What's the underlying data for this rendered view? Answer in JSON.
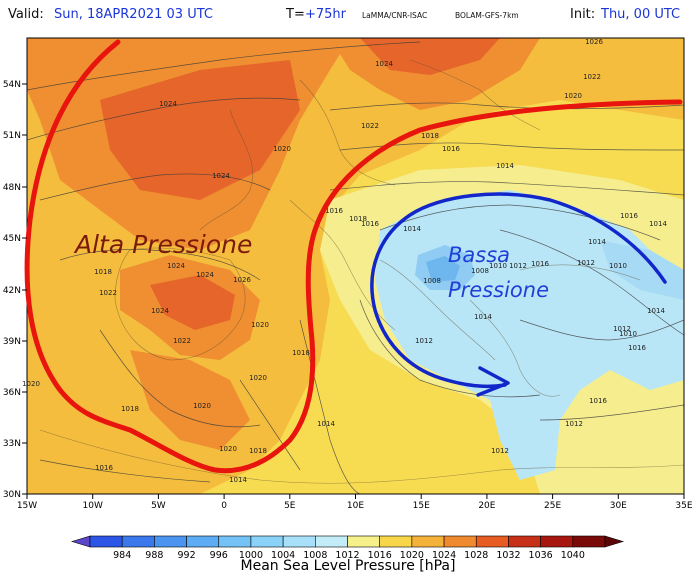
{
  "header": {
    "valid_label": "Valid:",
    "valid_value": "Sun, 18APR2021  03 UTC",
    "t_label": "T=",
    "t_value": "+75hr",
    "model_org": "LaMMA/CNR-ISAC",
    "model_name": "BOLAM-GFS-7km",
    "init_label": "Init:",
    "init_value": "Thu, 00 UTC"
  },
  "axes": {
    "lon_ticks": [
      "15W",
      "10W",
      "5W",
      "0",
      "5E",
      "10E",
      "15E",
      "20E",
      "25E",
      "30E",
      "35E"
    ],
    "lat_ticks": [
      "54N",
      "51N",
      "48N",
      "45N",
      "42N",
      "39N",
      "36N",
      "33N",
      "30N"
    ]
  },
  "isobar_labels": [
    "1024",
    "1026",
    "1022",
    "1020",
    "1024",
    "1022",
    "1020",
    "1018",
    "1016",
    "1014",
    "1024",
    "1024",
    "1024",
    "1026",
    "1024",
    "1022",
    "1020",
    "1018",
    "1016",
    "1018",
    "1016",
    "1014",
    "1010",
    "1008",
    "1008",
    "1012",
    "1016",
    "1014",
    "1010",
    "1012",
    "1012",
    "1010",
    "1014",
    "1012",
    "1014",
    "1012",
    "1012",
    "1016",
    "1014",
    "1016",
    "1016",
    "1014",
    "1018",
    "1020",
    "1020",
    "1020",
    "1020",
    "1018",
    "1016",
    "1014",
    "1022",
    "1018"
  ],
  "annotations": {
    "high": "Alta Pressione",
    "low_line1": "Bassa",
    "low_line2": "Pressione"
  },
  "legend": {
    "title": "Mean Sea Level Pressure [hPa]",
    "ticks": [
      "984",
      "988",
      "992",
      "996",
      "1000",
      "1004",
      "1008",
      "1012",
      "1016",
      "1020",
      "1024",
      "1028",
      "1032",
      "1036",
      "1040"
    ],
    "colors": [
      "#2e56e6",
      "#3b78ec",
      "#4b95f1",
      "#5eadf4",
      "#74c2f6",
      "#8ad2f7",
      "#a7e0f8",
      "#c3ecf9",
      "#f5f08a",
      "#f7d64a",
      "#f5b23a",
      "#ef8a2e",
      "#e65c22",
      "#c63019",
      "#a8170f",
      "#7a0a08"
    ]
  },
  "colors": {
    "high_annotation": "#7a1a0a",
    "low_annotation": "#1f3fd6",
    "high_line": "#e8140e",
    "low_line": "#1226c9"
  }
}
